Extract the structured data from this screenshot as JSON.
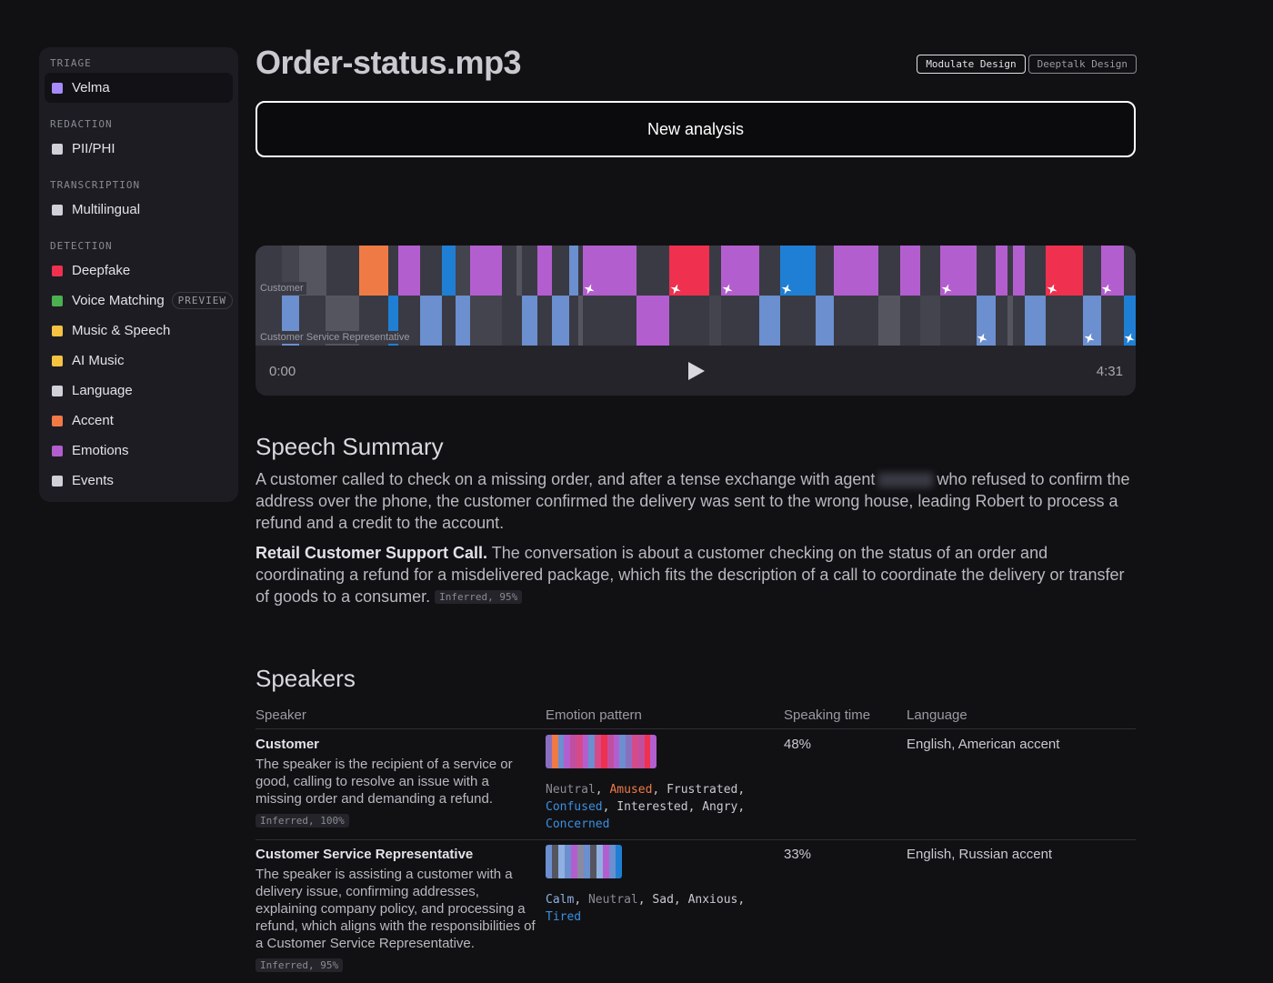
{
  "sidebar": {
    "sections": [
      {
        "title": "TRIAGE",
        "items": [
          {
            "label": "Velma",
            "icon": "#a78bfa"
          }
        ]
      },
      {
        "title": "REDACTION",
        "items": [
          {
            "label": "PII/PHI",
            "icon": "#d0d0d8"
          }
        ]
      },
      {
        "title": "TRANSCRIPTION",
        "items": [
          {
            "label": "Multilingual",
            "icon": "#d0d0d8"
          }
        ]
      },
      {
        "title": "DETECTION",
        "items": [
          {
            "label": "Deepfake",
            "icon": "#f0304f"
          },
          {
            "label": "Voice Matching",
            "badge": "PREVIEW",
            "icon": "#4caf50"
          },
          {
            "label": "Music & Speech",
            "icon": "#f5c242"
          },
          {
            "label": "AI Music",
            "icon": "#f5c242"
          },
          {
            "label": "Language",
            "icon": "#d0d0d8"
          },
          {
            "label": "Accent",
            "icon": "#f07a45"
          },
          {
            "label": "Emotions",
            "icon": "#b35ecf"
          },
          {
            "label": "Events",
            "icon": "#d0d0d8"
          }
        ]
      }
    ]
  },
  "header": {
    "title": "Order-status.mp3",
    "tabs": [
      "Modulate Design",
      "Deeptalk Design"
    ],
    "button": "New analysis"
  },
  "player": {
    "lanes": [
      "Customer",
      "Customer Service Representative"
    ],
    "start": "0:00",
    "end": "4:31"
  },
  "summary": {
    "heading": "Speech Summary",
    "paragraph_1": [
      "A customer called to check on a missing order, and after a tense exchange with agent",
      "who refused to confirm the address over the phone, the customer confirmed the delivery was sent to the wrong house, leading Robert to process a refund and a credit to the account."
    ],
    "paragraph_2": {
      "lead": "Retail Customer Support Call.",
      "text": "The conversation is about a customer checking on the status of an order and coordinating a refund for a misdelivered package, which fits the description of a call to coordinate the delivery or transfer of goods to a consumer.",
      "badge": "Inferred, 95%"
    }
  },
  "speakers": {
    "heading": "Speakers",
    "columns": [
      "Speaker",
      "Emotion pattern",
      "Speaking time",
      "Language"
    ],
    "rows": [
      {
        "name": "Customer",
        "description": "The speaker is the recipient of a service or good, calling to resolve an issue with a missing order and demanding a refund.",
        "badge": "Inferred, 100%",
        "emotions": [
          {
            "word": "Neutral",
            "color": "#8b8b94"
          },
          {
            "word": "Amused",
            "color": "#f07a45"
          },
          {
            "word": "Frustrated",
            "color": "#c9c9d0"
          },
          {
            "word": "Confused",
            "color": "#3b8fe0"
          },
          {
            "word": "Interested",
            "color": "#c9c9d0"
          },
          {
            "word": "Angry",
            "color": "#c9c9d0"
          },
          {
            "word": "Concerned",
            "color": "#3b8fe0"
          }
        ],
        "speaking_time": "48%",
        "language": "English, American accent"
      },
      {
        "name": "Customer Service Representative",
        "description": "The speaker is assisting a customer with a delivery issue, confirming addresses, explaining company policy, and processing a refund, which aligns with the responsibilities of a Customer Service Representative.",
        "badge": "Inferred, 95%",
        "emotions": [
          {
            "word": "Calm",
            "color": "#8fb0e0"
          },
          {
            "word": "Neutral",
            "color": "#8b8b94"
          },
          {
            "word": "Sad",
            "color": "#c9c9d0"
          },
          {
            "word": "Anxious",
            "color": "#c9c9d0"
          },
          {
            "word": "Tired",
            "color": "#3b8fe0"
          }
        ],
        "speaking_time": "33%",
        "language": "English, Russian accent"
      }
    ]
  }
}
